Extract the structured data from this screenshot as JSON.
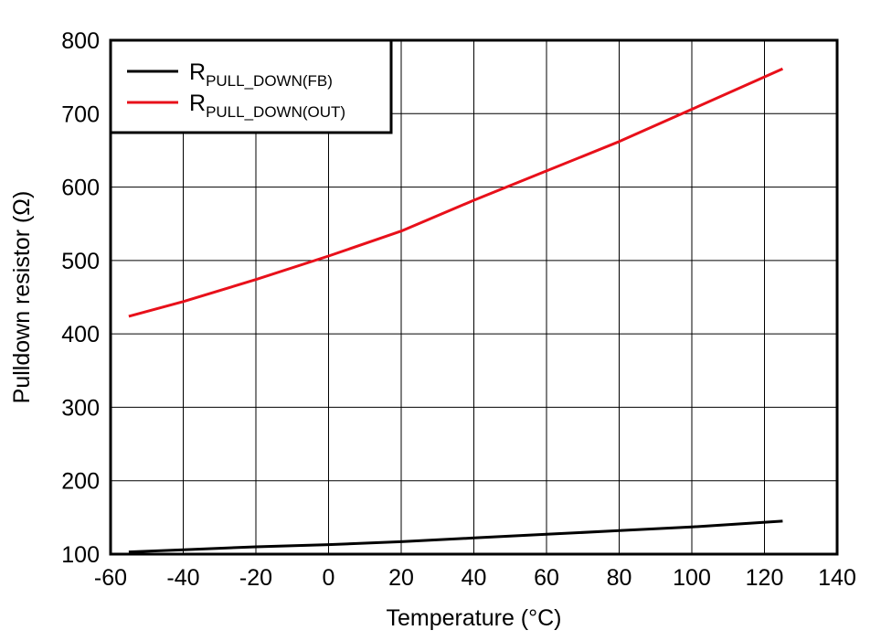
{
  "chart_data": {
    "type": "line",
    "xlabel": "Temperature (°C)",
    "ylabel": "Pulldown resistor (Ω)",
    "xlim": [
      -60,
      140
    ],
    "ylim": [
      100,
      800
    ],
    "xticks": [
      -60,
      -40,
      -20,
      0,
      20,
      40,
      60,
      80,
      100,
      120,
      140
    ],
    "yticks": [
      100,
      200,
      300,
      400,
      500,
      600,
      700,
      800
    ],
    "grid": true,
    "legend_position": "top-left",
    "series": [
      {
        "name": "RPULL_DOWN(FB)",
        "legend_main": "R",
        "legend_sub": "PULL_DOWN(FB)",
        "color": "#000000",
        "x": [
          -55,
          -40,
          -20,
          0,
          20,
          40,
          60,
          80,
          100,
          125
        ],
        "y": [
          103,
          106,
          110,
          113,
          117,
          122,
          127,
          132,
          137,
          145
        ]
      },
      {
        "name": "RPULL_DOWN(OUT)",
        "legend_main": "R",
        "legend_sub": "PULL_DOWN(OUT)",
        "color": "#e8101a",
        "x": [
          -55,
          -40,
          -20,
          0,
          20,
          40,
          60,
          80,
          100,
          125
        ],
        "y": [
          424,
          444,
          474,
          506,
          540,
          582,
          622,
          662,
          706,
          761
        ]
      }
    ]
  }
}
